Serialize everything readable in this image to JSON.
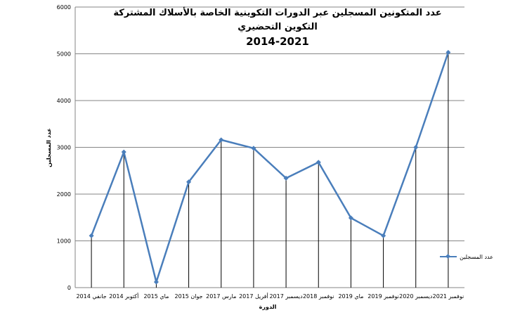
{
  "chart_data": {
    "type": "line",
    "title_lines": [
      "عدد المتكونين المسجلين عبر الدورات التكوينية الخاصة بالأسلاك المشتركة",
      "التكوين التحضيري",
      "2014-2021"
    ],
    "xlabel": "الدورة",
    "ylabel": "عدد المسجلين",
    "categories": [
      "جانفي 2014",
      "أكتوبر 2014",
      "ماي 2015",
      "جوان 2015",
      "مارس 2017",
      "أفريل 2017",
      "ديسمبر 2017",
      "نوفمبر 2018",
      "ماي 2019",
      "نوفمبر 2019",
      "ديسمبر 2020",
      "نوفمبر 2021"
    ],
    "series": [
      {
        "name": "عدد المسجلين",
        "values": [
          1110,
          2900,
          120,
          2260,
          3160,
          2980,
          2340,
          2680,
          1490,
          1110,
          3000,
          5030
        ]
      }
    ],
    "ylim": [
      0,
      6000
    ],
    "yticks": [
      0,
      1000,
      2000,
      3000,
      4000,
      5000,
      6000
    ],
    "grid": true,
    "legend": "right",
    "line_color": "#4a7ebb",
    "grid_color": "#868686"
  }
}
